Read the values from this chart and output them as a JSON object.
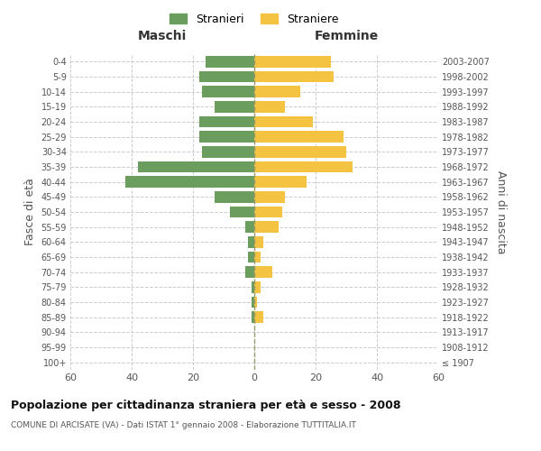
{
  "age_groups": [
    "100+",
    "95-99",
    "90-94",
    "85-89",
    "80-84",
    "75-79",
    "70-74",
    "65-69",
    "60-64",
    "55-59",
    "50-54",
    "45-49",
    "40-44",
    "35-39",
    "30-34",
    "25-29",
    "20-24",
    "15-19",
    "10-14",
    "5-9",
    "0-4"
  ],
  "birth_years": [
    "≤ 1907",
    "1908-1912",
    "1913-1917",
    "1918-1922",
    "1923-1927",
    "1928-1932",
    "1933-1937",
    "1938-1942",
    "1943-1947",
    "1948-1952",
    "1953-1957",
    "1958-1962",
    "1963-1967",
    "1968-1972",
    "1973-1977",
    "1978-1982",
    "1983-1987",
    "1988-1992",
    "1993-1997",
    "1998-2002",
    "2003-2007"
  ],
  "stranieri": [
    0,
    0,
    0,
    1,
    1,
    1,
    3,
    2,
    2,
    3,
    8,
    13,
    42,
    38,
    17,
    18,
    18,
    13,
    17,
    18,
    16
  ],
  "straniere": [
    0,
    0,
    0,
    3,
    1,
    2,
    6,
    2,
    3,
    8,
    9,
    10,
    17,
    32,
    30,
    29,
    19,
    10,
    15,
    26,
    25
  ],
  "color_stranieri": "#6b9e5e",
  "color_straniere": "#f5c342",
  "xlabel_left": "Maschi",
  "xlabel_right": "Femmine",
  "ylabel_left": "Fasce di età",
  "ylabel_right": "Anni di nascita",
  "title": "Popolazione per cittadinanza straniera per età e sesso - 2008",
  "subtitle": "COMUNE DI ARCISATE (VA) - Dati ISTAT 1° gennaio 2008 - Elaborazione TUTTITALIA.IT",
  "legend_stranieri": "Stranieri",
  "legend_straniere": "Straniere",
  "xlim": 60,
  "bg_color": "#ffffff",
  "grid_color": "#cccccc"
}
